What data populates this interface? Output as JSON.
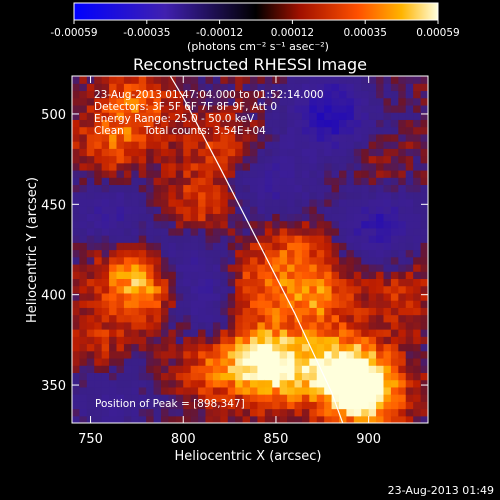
{
  "chart_data": {
    "type": "heatmap",
    "title": "Reconstructed RHESSI Image",
    "xlabel": "Heliocentric X (arcsec)",
    "ylabel": "Heliocentric Y (arcsec)",
    "xlim": [
      740,
      932
    ],
    "ylim": [
      329,
      521
    ],
    "x_ticks": [
      750,
      800,
      850,
      900
    ],
    "y_ticks": [
      350,
      400,
      450,
      500
    ],
    "colorbar": {
      "ticks": [
        "-0.00059",
        "-0.00035",
        "-0.00012",
        "0.00012",
        "0.00035",
        "0.00059"
      ],
      "range": [
        -0.00059,
        0.00059
      ],
      "unit_label": "(photons cm⁻² s⁻¹ asec⁻²)"
    },
    "annotations": [
      "23-Aug-2013 01:47:04.000 to 01:52:14.000",
      "Detectors: 3F 5F 6F 7F 8F 9F, Att 0",
      "Energy Range: 25.0 - 50.0 keV",
      "Clean      Total counts: 3.54E+04"
    ],
    "peak_label": "Position of Peak = [898,347]",
    "peak": [
      898,
      347
    ],
    "footer_timestamp": "23-Aug-2013 01:49",
    "limb_curve": {
      "x": [
        793,
        800,
        820,
        840,
        860,
        880,
        886
      ],
      "y": [
        521,
        509,
        470,
        430,
        390,
        346,
        329
      ]
    },
    "bright_sources": [
      {
        "x": 898,
        "y": 347,
        "intensity": 1.0
      },
      {
        "x": 884,
        "y": 360,
        "intensity": 0.7
      },
      {
        "x": 852,
        "y": 358,
        "intensity": 0.65
      },
      {
        "x": 838,
        "y": 368,
        "intensity": 0.55
      },
      {
        "x": 785,
        "y": 405,
        "intensity": 0.6
      },
      {
        "x": 768,
        "y": 413,
        "intensity": 0.45
      },
      {
        "x": 805,
        "y": 445,
        "intensity": 0.45
      },
      {
        "x": 835,
        "y": 405,
        "intensity": 0.5
      },
      {
        "x": 870,
        "y": 400,
        "intensity": 0.55
      },
      {
        "x": 860,
        "y": 430,
        "intensity": 0.4
      },
      {
        "x": 760,
        "y": 480,
        "intensity": 0.4
      },
      {
        "x": 775,
        "y": 505,
        "intensity": 0.45
      },
      {
        "x": 820,
        "y": 480,
        "intensity": 0.35
      },
      {
        "x": 755,
        "y": 370,
        "intensity": 0.35
      },
      {
        "x": 815,
        "y": 360,
        "intensity": 0.4
      },
      {
        "x": 900,
        "y": 470,
        "intensity": 0.25
      },
      {
        "x": 915,
        "y": 400,
        "intensity": 0.3
      }
    ],
    "negative_regions": [
      {
        "x": 880,
        "y": 500,
        "intensity": 0.9
      },
      {
        "x": 905,
        "y": 440,
        "intensity": 0.7
      },
      {
        "x": 800,
        "y": 420,
        "intensity": 0.6
      },
      {
        "x": 815,
        "y": 395,
        "intensity": 0.5
      },
      {
        "x": 760,
        "y": 445,
        "intensity": 0.55
      },
      {
        "x": 760,
        "y": 345,
        "intensity": 0.45
      },
      {
        "x": 850,
        "y": 460,
        "intensity": 0.55
      }
    ]
  }
}
